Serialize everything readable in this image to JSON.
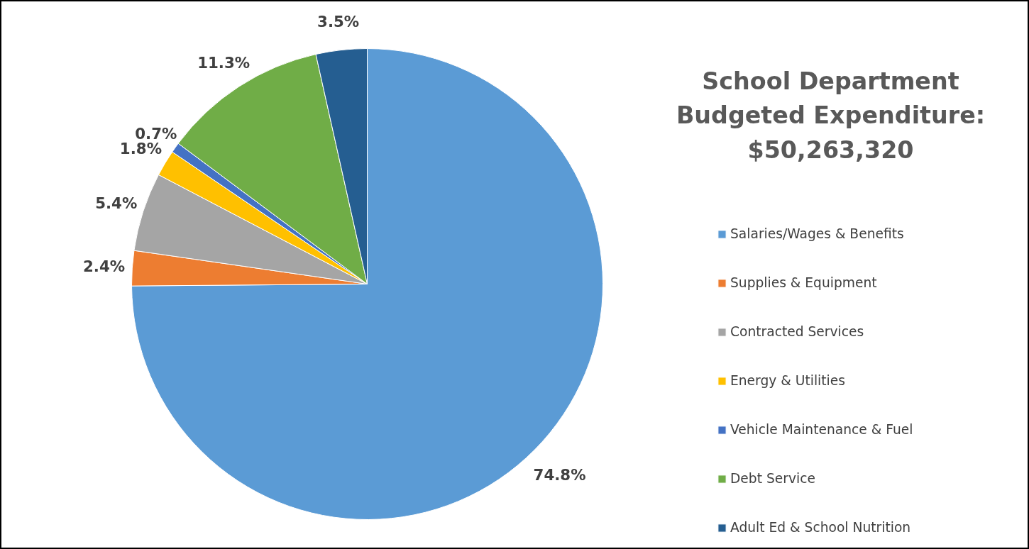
{
  "chart_data": {
    "type": "pie",
    "title": "School Department Budgeted Expenditure: $50,263,320",
    "categories": [
      "Salaries/Wages & Benefits",
      "Supplies & Equipment",
      "Contracted Services",
      "Energy & Utilities",
      "Vehicle Maintenance & Fuel",
      "Debt Service",
      "Adult Ed & School Nutrition"
    ],
    "values": [
      74.8,
      2.4,
      5.4,
      1.8,
      0.7,
      11.3,
      3.5
    ],
    "colors": [
      "#5b9bd5",
      "#ed7d31",
      "#a5a5a5",
      "#ffc000",
      "#4472c4",
      "#70ad47",
      "#255e91"
    ],
    "value_labels": [
      "74.8%",
      "2.4%",
      "5.4%",
      "1.8%",
      "0.7%",
      "11.3%",
      "3.5%"
    ],
    "legend": "right"
  }
}
